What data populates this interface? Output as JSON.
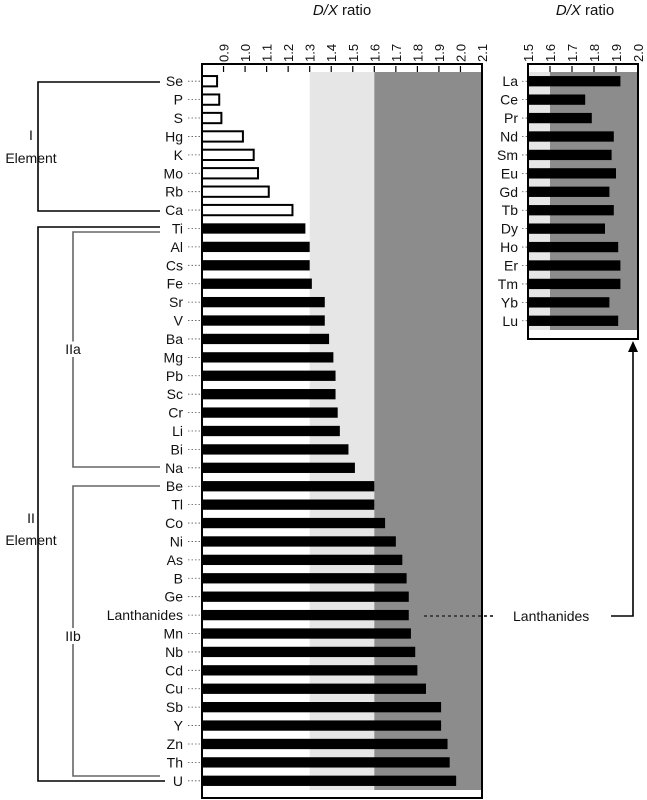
{
  "chart_data": [
    {
      "type": "bar",
      "orientation": "horizontal",
      "title_prefix": "D/X",
      "title_suffix": " ratio",
      "xlim": [
        0.8,
        2.1
      ],
      "xticks": [
        "0.9",
        "1.0",
        "1.1",
        "1.2",
        "1.3",
        "1.4",
        "1.5",
        "1.6",
        "1.7",
        "1.8",
        "1.9",
        "2.0",
        "2.1"
      ],
      "bands": [
        {
          "from": 0.8,
          "to": 1.3,
          "color": "#ffffff"
        },
        {
          "from": 1.3,
          "to": 1.6,
          "color": "#e6e6e6"
        },
        {
          "from": 1.6,
          "to": 2.1,
          "color": "#8c8c8c"
        }
      ],
      "categories": [
        "Se",
        "P",
        "S",
        "Hg",
        "K",
        "Mo",
        "Rb",
        "Ca",
        "Ti",
        "Al",
        "Cs",
        "Fe",
        "Sr",
        "V",
        "Ba",
        "Mg",
        "Pb",
        "Sc",
        "Cr",
        "Li",
        "Bi",
        "Na",
        "Be",
        "Tl",
        "Co",
        "Ni",
        "As",
        "B",
        "Ge",
        "Lanthanides",
        "Mn",
        "Nb",
        "Cd",
        "Cu",
        "Sb",
        "Y",
        "Zn",
        "Th",
        "U"
      ],
      "values": [
        0.87,
        0.88,
        0.89,
        0.99,
        1.04,
        1.06,
        1.11,
        1.22,
        1.28,
        1.3,
        1.3,
        1.31,
        1.37,
        1.37,
        1.39,
        1.41,
        1.42,
        1.42,
        1.43,
        1.44,
        1.48,
        1.51,
        1.6,
        1.6,
        1.65,
        1.7,
        1.73,
        1.75,
        1.76,
        1.76,
        1.77,
        1.79,
        1.8,
        1.84,
        1.91,
        1.91,
        1.94,
        1.95,
        1.98
      ],
      "open_bar_count": 8,
      "groups": [
        {
          "label": "I",
          "label2": "Element",
          "from": "Se",
          "to": "Ca"
        },
        {
          "label": "II",
          "label2": "Element",
          "from": "Ti",
          "to": "U"
        },
        {
          "label": "IIa",
          "from": "Ti",
          "to": "Na"
        },
        {
          "label": "IIb",
          "from": "Be",
          "to": "U"
        }
      ]
    },
    {
      "type": "bar",
      "orientation": "horizontal",
      "title_prefix": "D/X",
      "title_suffix": " ratio",
      "xlim": [
        1.5,
        2.0
      ],
      "xticks": [
        "1.5",
        "1.6",
        "1.7",
        "1.8",
        "1.9",
        "2.0"
      ],
      "bands": [
        {
          "from": 1.5,
          "to": 1.6,
          "color": "#e6e6e6"
        },
        {
          "from": 1.6,
          "to": 2.0,
          "color": "#8c8c8c"
        }
      ],
      "categories": [
        "La",
        "Ce",
        "Pr",
        "Nd",
        "Sm",
        "Eu",
        "Gd",
        "Tb",
        "Dy",
        "Ho",
        "Er",
        "Tm",
        "Yb",
        "Lu"
      ],
      "values": [
        1.92,
        1.76,
        1.79,
        1.89,
        1.88,
        1.9,
        1.87,
        1.89,
        1.85,
        1.91,
        1.92,
        1.92,
        1.87,
        1.91
      ],
      "annotation": "Lanthanides"
    }
  ]
}
